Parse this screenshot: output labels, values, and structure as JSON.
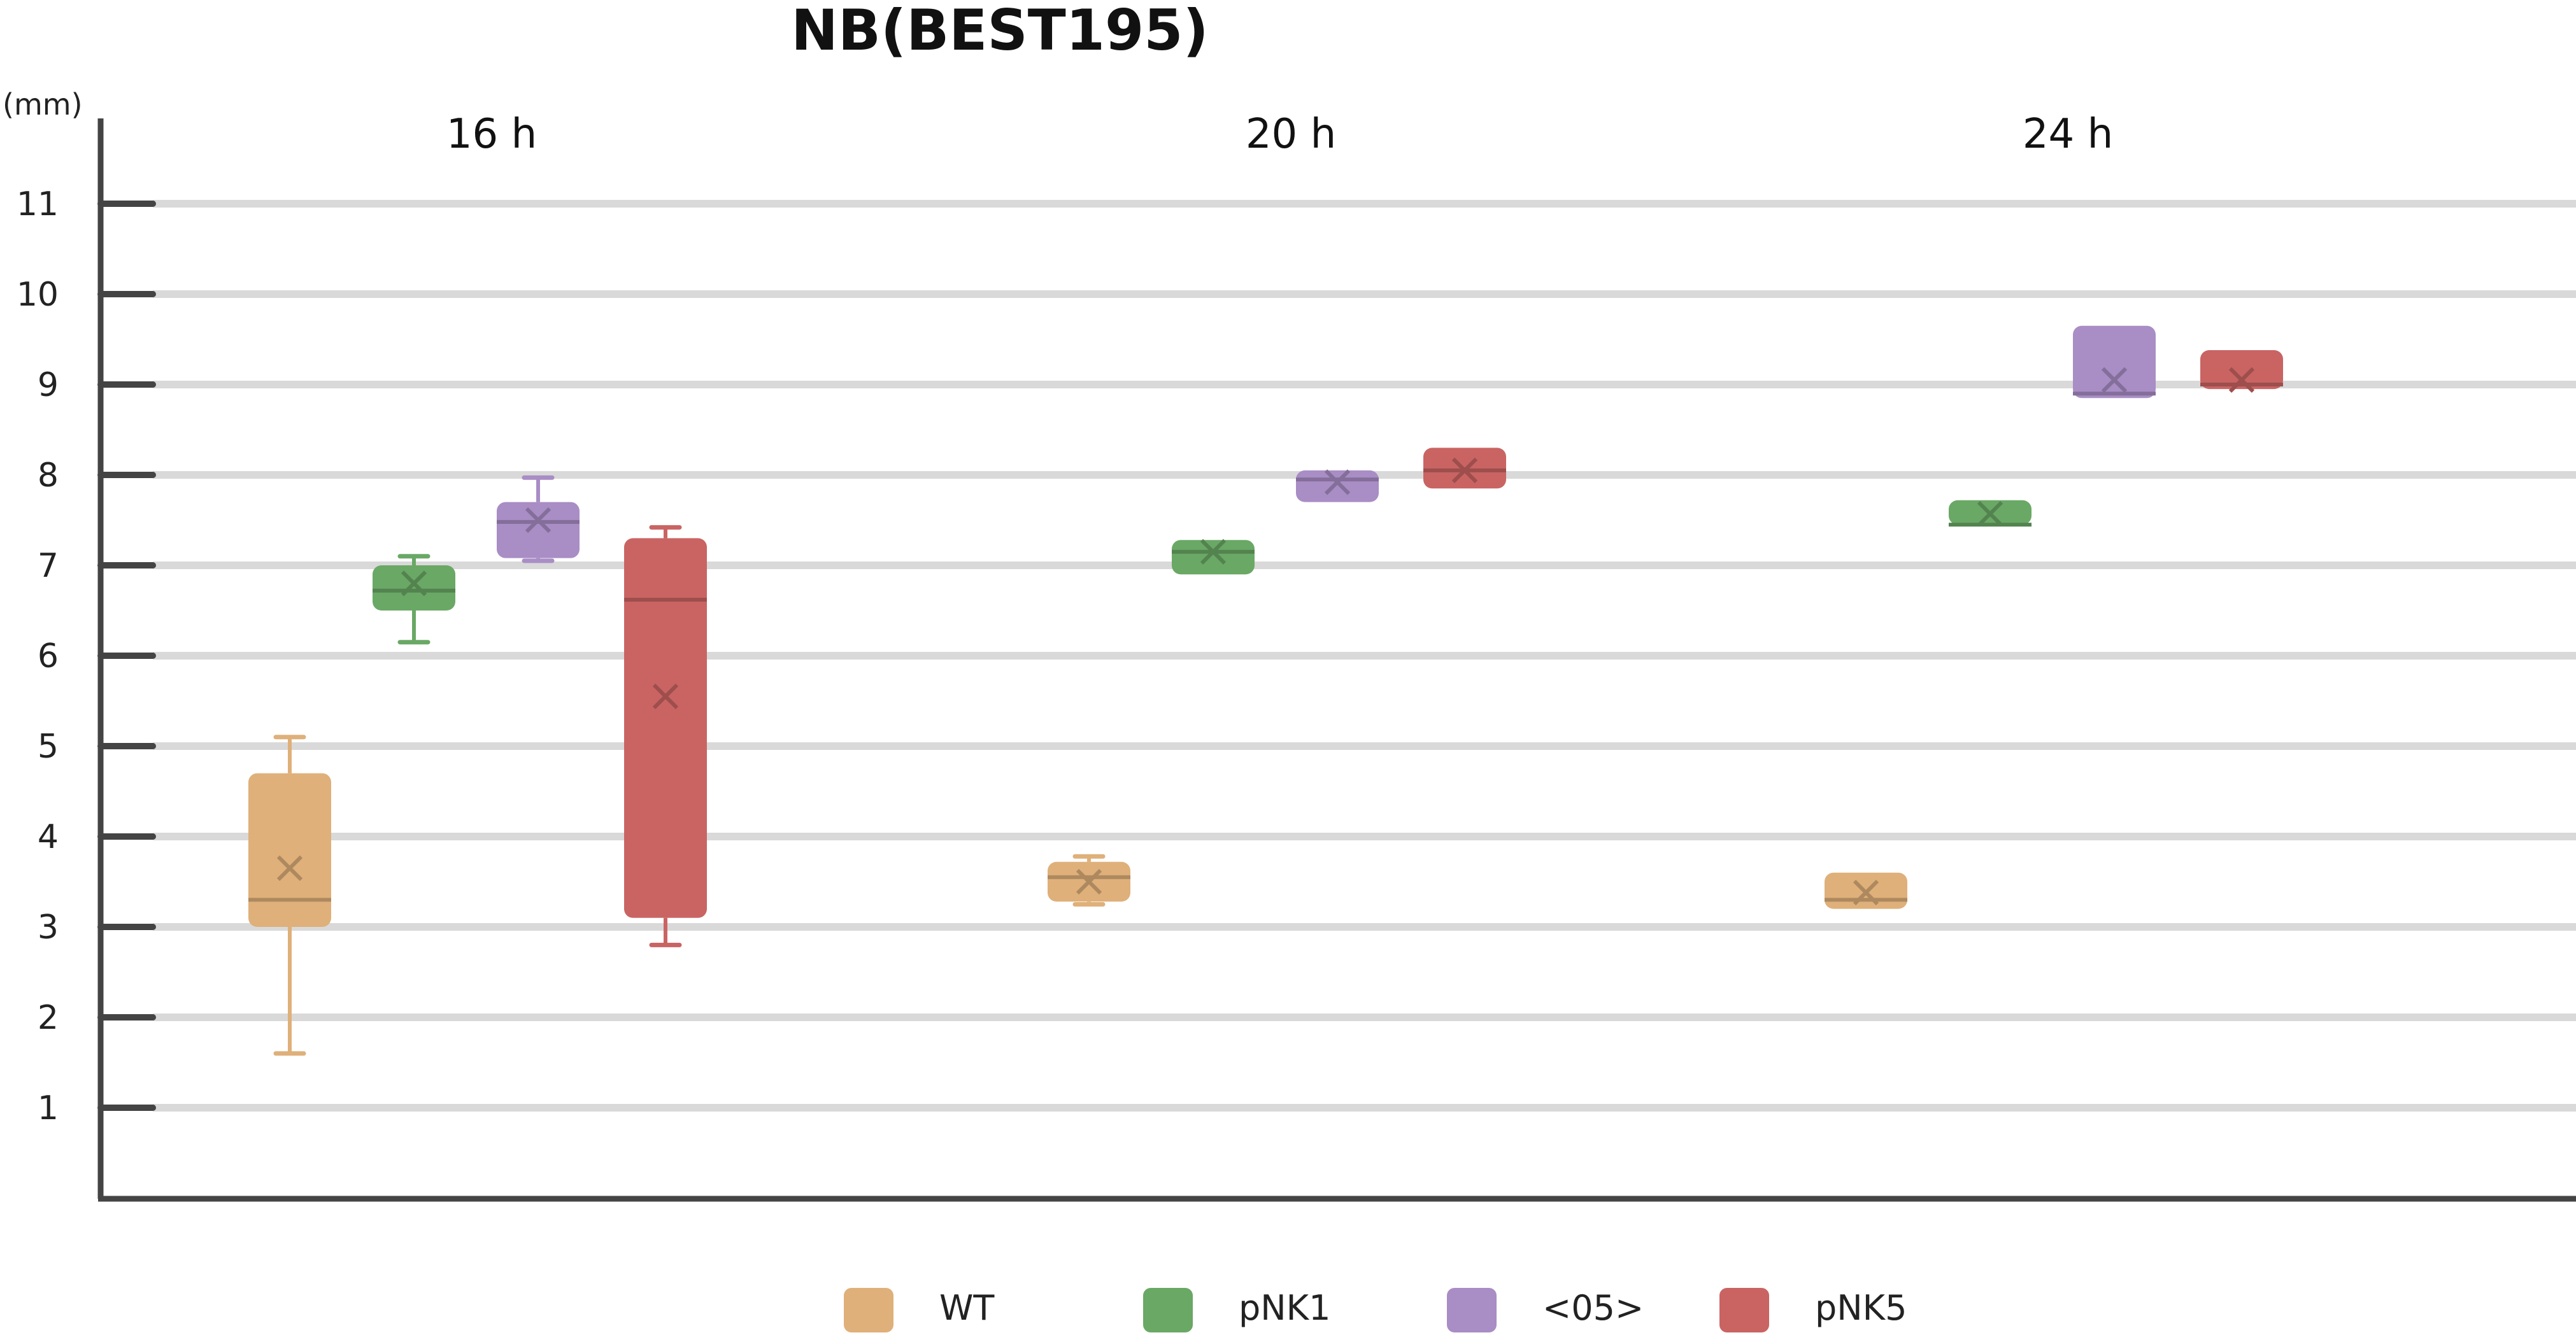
{
  "chart_data": {
    "type": "box",
    "title": "NB(BEST195)",
    "y_unit": "(mm)",
    "ylim": [
      0,
      12
    ],
    "y_ticks": [
      "1",
      "2",
      "3",
      "4",
      "5",
      "6",
      "7",
      "8",
      "9",
      "10",
      "11"
    ],
    "grid": true,
    "legend_position": "bottom",
    "categories": [
      "16 h",
      "20 h",
      "24 h"
    ],
    "series": [
      {
        "name": "WT",
        "color": "#dfb07a",
        "boxes": [
          {
            "category": "16 h",
            "min": 1.6,
            "q1": 3.0,
            "median": 3.3,
            "q3": 4.7,
            "max": 5.1,
            "mean": 3.65
          },
          {
            "category": "20 h",
            "min": 3.25,
            "q1": 3.28,
            "median": 3.55,
            "q3": 3.72,
            "max": 3.78,
            "mean": 3.5
          },
          {
            "category": "24 h",
            "min": 3.2,
            "q1": 3.2,
            "median": 3.3,
            "q3": 3.6,
            "max": 3.6,
            "mean": 3.38
          }
        ]
      },
      {
        "name": "pNK1",
        "color": "#6aa865",
        "boxes": [
          {
            "category": "16 h",
            "min": 6.15,
            "q1": 6.5,
            "median": 6.72,
            "q3": 7.0,
            "max": 7.1,
            "mean": 6.8
          },
          {
            "category": "20 h",
            "min": 6.9,
            "q1": 6.9,
            "median": 7.15,
            "q3": 7.28,
            "max": 7.28,
            "mean": 7.15
          },
          {
            "category": "24 h",
            "min": 7.45,
            "q1": 7.45,
            "median": 7.45,
            "q3": 7.72,
            "max": 7.72,
            "mean": 7.57
          }
        ]
      },
      {
        "name": "<05>",
        "color": "#a98dc5",
        "boxes": [
          {
            "category": "16 h",
            "min": 7.05,
            "q1": 7.08,
            "median": 7.48,
            "q3": 7.7,
            "max": 7.97,
            "mean": 7.5
          },
          {
            "category": "20 h",
            "min": 7.7,
            "q1": 7.7,
            "median": 7.95,
            "q3": 8.05,
            "max": 8.05,
            "mean": 7.92
          },
          {
            "category": "24 h",
            "min": 8.85,
            "q1": 8.85,
            "median": 8.9,
            "q3": 9.65,
            "max": 9.65,
            "mean": 9.05
          }
        ]
      },
      {
        "name": "pNK5",
        "color": "#c96463",
        "boxes": [
          {
            "category": "16 h",
            "min": 2.8,
            "q1": 3.1,
            "median": 6.62,
            "q3": 7.3,
            "max": 7.42,
            "mean": 5.55
          },
          {
            "category": "20 h",
            "min": 7.85,
            "q1": 7.85,
            "median": 8.05,
            "q3": 8.3,
            "max": 8.3,
            "mean": 8.05
          },
          {
            "category": "24 h",
            "min": 8.95,
            "q1": 8.95,
            "median": 9.0,
            "q3": 9.38,
            "max": 9.38,
            "mean": 9.05
          }
        ]
      }
    ]
  }
}
